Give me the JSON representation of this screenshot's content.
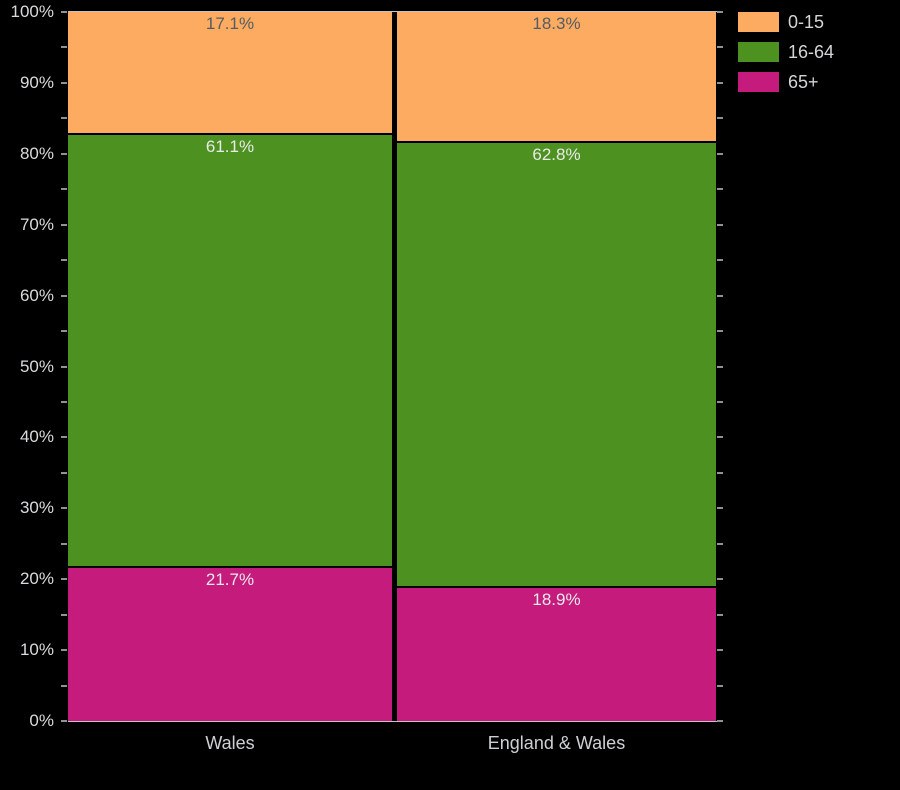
{
  "chart_data": {
    "type": "bar",
    "stacking": "percent",
    "title": "",
    "xlabel": "",
    "ylabel": "",
    "categories": [
      "Wales",
      "England & Wales"
    ],
    "series": [
      {
        "name": "0-15",
        "color": "#fcab60",
        "label_color": "#565c63",
        "values": [
          17.1,
          18.3
        ]
      },
      {
        "name": "16-64",
        "color": "#4d9221",
        "label_color": "#e9e9e9",
        "values": [
          61.1,
          62.8
        ]
      },
      {
        "name": "65+",
        "color": "#c51b7d",
        "label_color": "#e9e9e9",
        "values": [
          21.7,
          18.9
        ]
      }
    ],
    "value_labels": [
      [
        "17.1%",
        "18.3%"
      ],
      [
        "61.1%",
        "62.8%"
      ],
      [
        "21.7%",
        "18.9%"
      ]
    ],
    "ylim": [
      0,
      100
    ],
    "y_tick_labels": [
      "0%",
      "10%",
      "20%",
      "30%",
      "40%",
      "50%",
      "60%",
      "70%",
      "80%",
      "90%",
      "100%"
    ],
    "y_major_tick_step": 10,
    "y_minor_tick_step": 5,
    "grid": false,
    "legend_position": "top-right",
    "colors": {
      "background": "#000000",
      "axis_line": "#c0c4ca",
      "tick": "#8e9397",
      "axis_text": "#d9dadb",
      "category_text": "#cdd0d3",
      "legend_text": "#d5d5d7",
      "bar_border": "#000000"
    }
  }
}
